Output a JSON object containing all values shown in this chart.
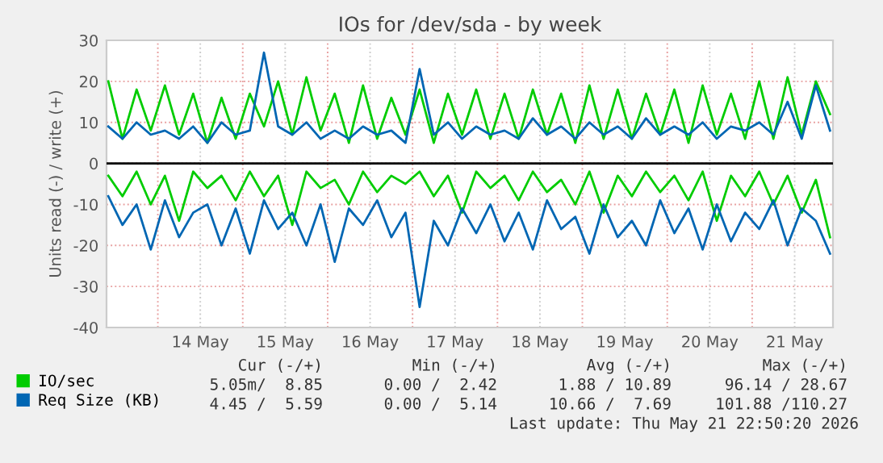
{
  "chart_data": {
    "type": "line",
    "title": "IOs for /dev/sda - by week",
    "ylabel": "Units read (-) / write (+)",
    "x": [
      "2026-05-13T10:00",
      "2026-05-13T14:00",
      "2026-05-13T18:00",
      "2026-05-13T22:00",
      "2026-05-14T02:00",
      "2026-05-14T06:00",
      "2026-05-14T10:00",
      "2026-05-14T14:00",
      "2026-05-14T18:00",
      "2026-05-14T22:00",
      "2026-05-15T02:00",
      "2026-05-15T06:00",
      "2026-05-15T10:00",
      "2026-05-15T14:00",
      "2026-05-15T18:00",
      "2026-05-15T22:00",
      "2026-05-16T02:00",
      "2026-05-16T06:00",
      "2026-05-16T10:00",
      "2026-05-16T14:00",
      "2026-05-16T18:00",
      "2026-05-16T22:00",
      "2026-05-17T02:00",
      "2026-05-17T06:00",
      "2026-05-17T10:00",
      "2026-05-17T14:00",
      "2026-05-17T18:00",
      "2026-05-17T22:00",
      "2026-05-18T02:00",
      "2026-05-18T06:00",
      "2026-05-18T10:00",
      "2026-05-18T14:00",
      "2026-05-18T18:00",
      "2026-05-18T22:00",
      "2026-05-19T02:00",
      "2026-05-19T06:00",
      "2026-05-19T10:00",
      "2026-05-19T14:00",
      "2026-05-19T18:00",
      "2026-05-19T22:00",
      "2026-05-20T02:00",
      "2026-05-20T06:00",
      "2026-05-20T10:00",
      "2026-05-20T14:00",
      "2026-05-20T18:00",
      "2026-05-20T22:00",
      "2026-05-21T02:00",
      "2026-05-21T06:00",
      "2026-05-21T10:00",
      "2026-05-21T14:00",
      "2026-05-21T18:00",
      "2026-05-21T22:00"
    ],
    "series": [
      {
        "name": "IO/sec",
        "color": "#00cc00",
        "values": [
          20,
          6,
          18,
          8,
          19,
          7,
          17,
          5,
          16,
          6,
          17,
          9,
          20,
          7,
          21,
          8,
          17,
          5,
          19,
          6,
          16,
          7,
          18,
          5,
          17,
          7,
          18,
          6,
          17,
          6,
          18,
          7,
          17,
          5,
          19,
          6,
          18,
          6,
          17,
          7,
          18,
          5,
          19,
          7,
          17,
          6,
          20,
          6,
          21,
          7,
          20,
          12
        ]
      },
      {
        "color": "#00cc00",
        "values": [
          -3,
          -8,
          -2,
          -10,
          -3,
          -14,
          -2,
          -6,
          -3,
          -9,
          -2,
          -8,
          -3,
          -15,
          -2,
          -6,
          -4,
          -10,
          -2,
          -7,
          -3,
          -5,
          -2,
          -8,
          -3,
          -12,
          -2,
          -6,
          -3,
          -9,
          -2,
          -7,
          -4,
          -10,
          -2,
          -12,
          -3,
          -8,
          -2,
          -7,
          -3,
          -9,
          -2,
          -14,
          -3,
          -8,
          -2,
          -10,
          -3,
          -12,
          -4,
          -18
        ]
      },
      {
        "name": "Req Size (KB)",
        "color": "#0066b3",
        "values": [
          9,
          6,
          10,
          7,
          8,
          6,
          9,
          5,
          10,
          7,
          8,
          27,
          9,
          7,
          10,
          6,
          8,
          6,
          9,
          7,
          8,
          5,
          23,
          7,
          10,
          6,
          9,
          7,
          8,
          6,
          11,
          7,
          9,
          6,
          10,
          7,
          9,
          6,
          11,
          7,
          9,
          7,
          10,
          6,
          9,
          8,
          10,
          7,
          15,
          6,
          19,
          8
        ]
      },
      {
        "color": "#0066b3",
        "values": [
          -8,
          -15,
          -10,
          -21,
          -9,
          -18,
          -12,
          -10,
          -20,
          -11,
          -22,
          -9,
          -16,
          -12,
          -20,
          -10,
          -24,
          -11,
          -15,
          -9,
          -18,
          -12,
          -35,
          -14,
          -20,
          -11,
          -17,
          -10,
          -19,
          -12,
          -21,
          -9,
          -16,
          -13,
          -22,
          -10,
          -18,
          -14,
          -20,
          -9,
          -17,
          -11,
          -21,
          -10,
          -19,
          -12,
          -16,
          -9,
          -20,
          -11,
          -14,
          -22
        ]
      }
    ],
    "xlim": [
      "2026-05-13T09:30",
      "2026-05-21T22:50"
    ],
    "xticks": [
      {
        "value": "2026-05-14T00:00",
        "label": null
      },
      {
        "value": "2026-05-14T12:00",
        "label": "14 May"
      },
      {
        "value": "2026-05-15T00:00",
        "label": null
      },
      {
        "value": "2026-05-15T12:00",
        "label": "15 May"
      },
      {
        "value": "2026-05-16T00:00",
        "label": null
      },
      {
        "value": "2026-05-16T12:00",
        "label": "16 May"
      },
      {
        "value": "2026-05-17T00:00",
        "label": null
      },
      {
        "value": "2026-05-17T12:00",
        "label": "17 May"
      },
      {
        "value": "2026-05-18T00:00",
        "label": null
      },
      {
        "value": "2026-05-18T12:00",
        "label": "18 May"
      },
      {
        "value": "2026-05-19T00:00",
        "label": null
      },
      {
        "value": "2026-05-19T12:00",
        "label": "19 May"
      },
      {
        "value": "2026-05-20T00:00",
        "label": null
      },
      {
        "value": "2026-05-20T12:00",
        "label": "20 May"
      },
      {
        "value": "2026-05-21T00:00",
        "label": null
      },
      {
        "value": "2026-05-21T12:00",
        "label": "21 May"
      }
    ],
    "ylim": [
      -40,
      30
    ],
    "yticks": [
      -40,
      -30,
      -20,
      -10,
      0,
      10,
      20,
      30
    ],
    "ref_lines": [
      {
        "axis": "y",
        "value": 0,
        "color": "#000000"
      }
    ],
    "grid": true,
    "legend": "bottom",
    "line_style": "solid",
    "marker": "none",
    "annotations": [
      "Cur (-/+)",
      "Min (-/+)",
      "Avg (-/+)",
      "Max (-/+)",
      "5.05m/  8.85",
      "0.00 /  2.42",
      "1.88 / 10.89",
      "96.14 / 28.67",
      "4.45 /  5.59",
      "0.00 /  5.14",
      "10.66 /  7.69",
      "101.88 /110.27",
      "Last update: Thu May 21 22:50:20 2026"
    ]
  }
}
